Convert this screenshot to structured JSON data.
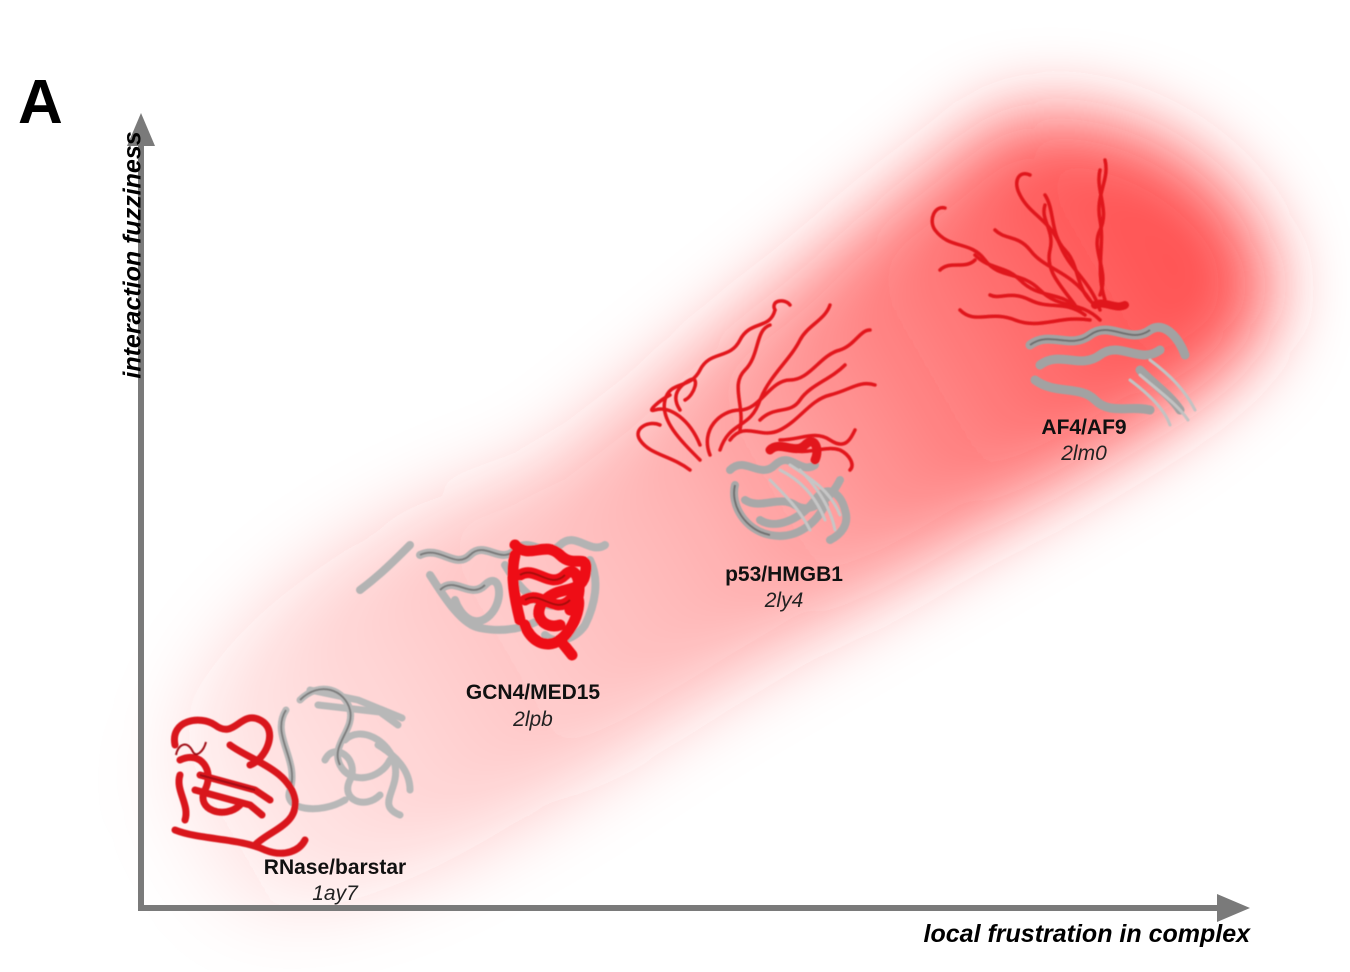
{
  "panel_label": "A",
  "axes": {
    "y_label": "interaction fuzziness",
    "x_label": "local frustration in complex"
  },
  "colors": {
    "axis": "#7a7a7a",
    "band": "#ff2a2a",
    "partner_red": "#d9141b",
    "partner_grey": "#9c9c9c"
  },
  "complexes": [
    {
      "name": "RNase/barstar",
      "pdb": "1ay7"
    },
    {
      "name": "GCN4/MED15",
      "pdb": "2lpb"
    },
    {
      "name": "p53/HMGB1",
      "pdb": "2ly4"
    },
    {
      "name": "AF4/AF9",
      "pdb": "2lm0"
    }
  ]
}
